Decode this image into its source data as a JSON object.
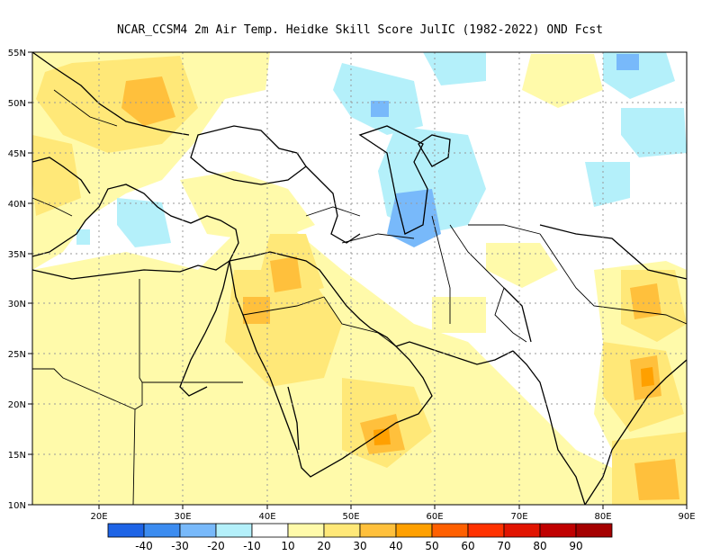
{
  "title": "NCAR_CCSM4  2m Air Temp. Heidke Skill Score JulIC (1982-2022) OND Fcst",
  "map": {
    "lon_range": [
      12,
      90
    ],
    "lat_range": [
      10,
      55
    ],
    "lon_ticks": [
      "20E",
      "30E",
      "40E",
      "50E",
      "60E",
      "70E",
      "80E",
      "90E"
    ],
    "lat_ticks": [
      "10N",
      "15N",
      "20N",
      "25N",
      "30N",
      "35N",
      "40N",
      "45N",
      "50N",
      "55N"
    ],
    "grid": true
  },
  "colorbar": {
    "labels": [
      "-40",
      "-30",
      "-20",
      "-10",
      "10",
      "20",
      "30",
      "40",
      "50",
      "60",
      "70",
      "80",
      "90"
    ],
    "colors": [
      "#1e64e6",
      "#3c8cf0",
      "#78b9fa",
      "#b4f0fa",
      "#ffffff",
      "#fffaaa",
      "#ffe878",
      "#ffc03c",
      "#ffa000",
      "#ff6000",
      "#ff3200",
      "#e11400",
      "#c00000",
      "#a50000"
    ]
  }
}
